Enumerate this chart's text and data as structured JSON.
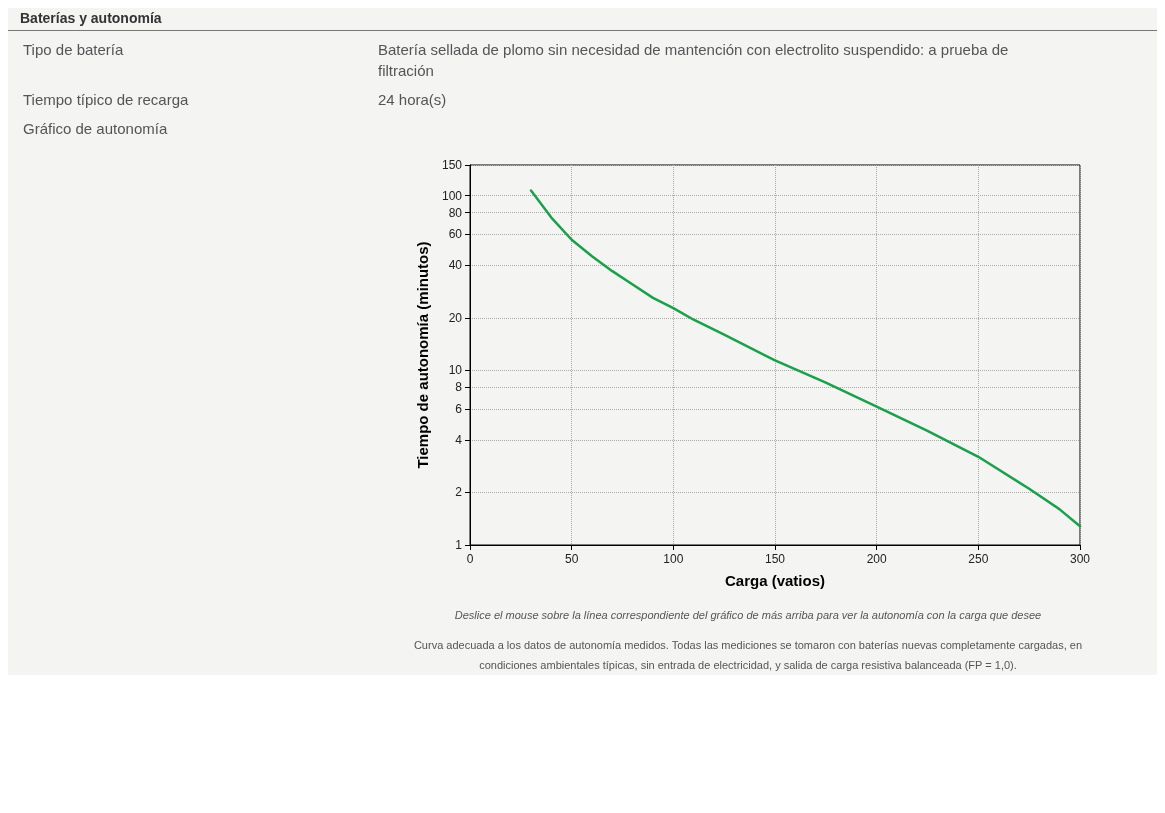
{
  "chart_data": {
    "type": "line",
    "title": "Baterías y autonomía",
    "annotations": [
      "Tipo de batería",
      "Batería sellada de plomo sin necesidad de mantención con electrolito suspendido: a prueba de filtración",
      "Tiempo típico de recarga",
      "24 hora(s)",
      "Gráfico de autonomía",
      "Deslice el mouse sobre la línea correspondiente del gráfico de más arriba para ver la autonomía con la carga que desee",
      "Curva adecuada a los datos de autonomía medidos. Todas las mediciones se tomaron con baterías nuevas completamente cargadas, en condiciones ambientales típicas, sin entrada de electricidad, y salida de carga resistiva balanceada (FP = 1,0)."
    ],
    "xlabel": "Carga (vatios)",
    "ylabel": "Tiempo de autonomía (minutos)",
    "x": [
      30,
      40,
      50,
      60,
      70,
      80,
      90,
      100,
      110,
      125,
      150,
      175,
      200,
      225,
      250,
      275,
      290,
      300
    ],
    "series": [
      {
        "color": "#1aa04a",
        "values": [
          107,
          75,
          56,
          45,
          37,
          31,
          26,
          22.7,
          19.5,
          16,
          11.4,
          8.5,
          6.2,
          4.5,
          3.2,
          2.1,
          1.6,
          1.28
        ]
      }
    ],
    "xlim": [
      0,
      300
    ],
    "xticks": [
      0,
      50,
      100,
      150,
      200,
      250,
      300
    ],
    "ylim": [
      1,
      150
    ],
    "yticks": [
      1,
      2,
      4,
      6,
      8,
      10,
      20,
      40,
      60,
      80,
      100,
      150
    ],
    "log": "y",
    "grid": true,
    "marker": "none",
    "line_style": "solid"
  }
}
